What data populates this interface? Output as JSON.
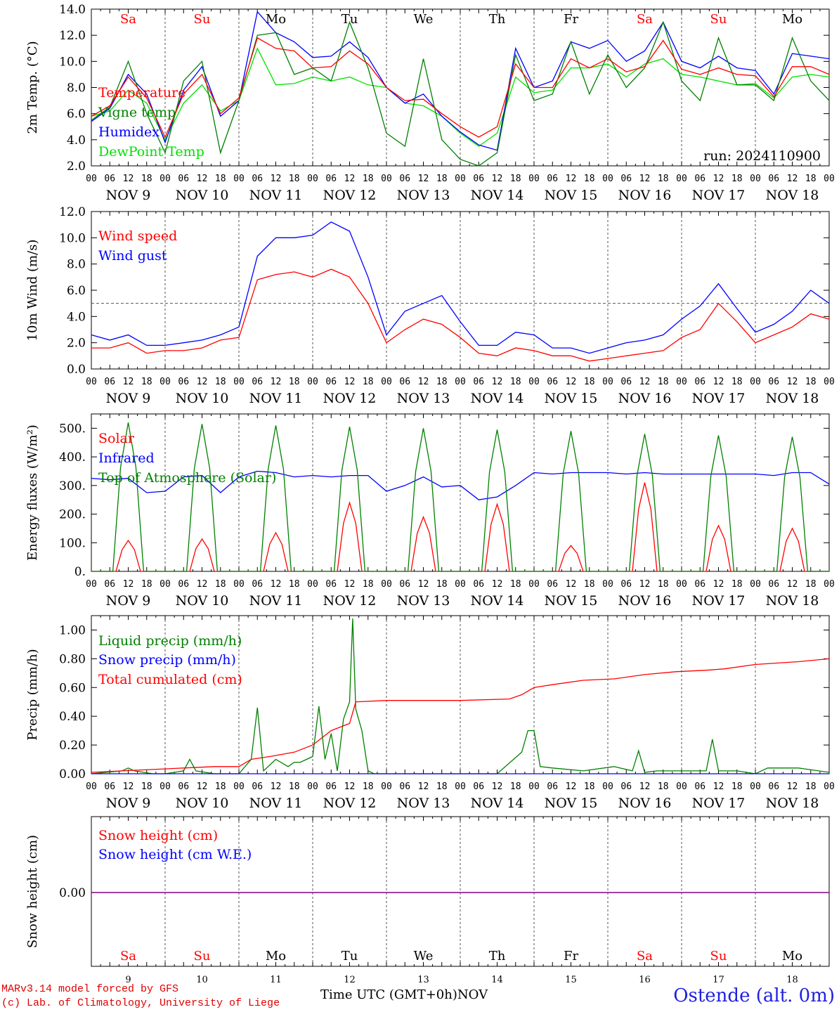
{
  "run_label": "run: 2024110900",
  "footer": {
    "model_line": "MARv3.14 model forced by GFS",
    "copyright_line": "(c) Lab. of Climatology, University of Liege",
    "time_axis_label": "Time UTC (GMT+0h)",
    "month_label": "NOV",
    "station": "Ostende (alt. 0m)"
  },
  "colors": {
    "red": "#ff0000",
    "green": "#008000",
    "blue": "#0000ff",
    "lightgreen": "#00e000",
    "purple": "#800080"
  },
  "days": [
    "9",
    "10",
    "11",
    "12",
    "13",
    "14",
    "15",
    "16",
    "17",
    "18"
  ],
  "date_labels": [
    "NOV  9",
    "NOV 10",
    "NOV 11",
    "NOV 12",
    "NOV 13",
    "NOV 14",
    "NOV 15",
    "NOV 16",
    "NOV 17",
    "NOV 18"
  ],
  "weekdays": [
    {
      "label": "Sa",
      "weekend": true
    },
    {
      "label": "Su",
      "weekend": true
    },
    {
      "label": "Mo",
      "weekend": false
    },
    {
      "label": "Tu",
      "weekend": false
    },
    {
      "label": "We",
      "weekend": false
    },
    {
      "label": "Th",
      "weekend": false
    },
    {
      "label": "Fr",
      "weekend": false
    },
    {
      "label": "Sa",
      "weekend": true
    },
    {
      "label": "Su",
      "weekend": true
    },
    {
      "label": "Mo",
      "weekend": false
    }
  ],
  "hour_ticks": [
    "00",
    "06",
    "12",
    "18"
  ],
  "chart_data": [
    {
      "type": "line",
      "ylabel": "2m Temp. (°C)",
      "ylim": [
        2,
        14
      ],
      "yticks": [
        "2.0",
        "4.0",
        "6.0",
        "8.0",
        "10.0",
        "12.0",
        "14.0"
      ],
      "x_unit": "hours since 2024-11-09 00 UTC",
      "series": [
        {
          "name": "Temperature",
          "color": "red",
          "x": [
            0,
            6,
            12,
            18,
            24,
            30,
            36,
            42,
            48,
            54,
            60,
            66,
            72,
            78,
            84,
            90,
            96,
            102,
            108,
            114,
            120,
            126,
            132,
            138,
            144,
            150,
            156,
            162,
            168,
            174,
            180,
            186,
            192,
            198,
            204,
            210,
            216,
            222,
            228,
            234,
            240
          ],
          "y": [
            5.8,
            6.6,
            8.8,
            7.2,
            4.2,
            7.5,
            9.0,
            6.0,
            7.2,
            11.8,
            11.0,
            10.8,
            9.5,
            9.6,
            10.8,
            9.8,
            8.0,
            7.0,
            7.1,
            6.0,
            5.0,
            4.2,
            5.0,
            9.8,
            8.0,
            8.0,
            10.2,
            9.5,
            10.2,
            9.2,
            9.6,
            11.6,
            9.4,
            9.0,
            9.5,
            9.0,
            8.9,
            7.3,
            9.6,
            9.6,
            9.0
          ]
        },
        {
          "name": "Vigne temp",
          "color": "green",
          "x": [
            0,
            6,
            12,
            18,
            24,
            30,
            36,
            42,
            48,
            54,
            60,
            66,
            72,
            78,
            84,
            90,
            96,
            102,
            108,
            114,
            120,
            126,
            132,
            138,
            144,
            150,
            156,
            162,
            168,
            174,
            180,
            186,
            192,
            198,
            204,
            210,
            216,
            222,
            228,
            234,
            240
          ],
          "y": [
            5.5,
            6.5,
            10.0,
            6.0,
            3.0,
            8.5,
            10.0,
            3.0,
            7.0,
            12.0,
            12.2,
            9.0,
            9.5,
            8.5,
            13.0,
            9.5,
            4.5,
            3.5,
            10.2,
            4.0,
            2.5,
            1.8,
            3.0,
            10.5,
            7.0,
            7.5,
            11.5,
            7.5,
            10.5,
            8.0,
            9.5,
            13.0,
            8.5,
            7.0,
            11.8,
            8.2,
            8.2,
            7.0,
            11.8,
            8.5,
            7.0
          ]
        },
        {
          "name": "Humidex",
          "color": "blue",
          "x": [
            0,
            6,
            12,
            18,
            24,
            30,
            36,
            42,
            48,
            54,
            60,
            66,
            72,
            78,
            84,
            90,
            96,
            102,
            108,
            114,
            120,
            126,
            132,
            138,
            144,
            150,
            156,
            162,
            168,
            174,
            180,
            186,
            192,
            198,
            204,
            210,
            216,
            222,
            228,
            234,
            240
          ],
          "y": [
            5.4,
            6.4,
            9.0,
            7.5,
            3.8,
            7.8,
            9.6,
            5.8,
            7.0,
            13.8,
            12.2,
            11.5,
            10.3,
            10.4,
            11.5,
            10.3,
            8.0,
            6.8,
            7.5,
            5.8,
            4.6,
            3.6,
            3.2,
            11.0,
            8.0,
            8.5,
            11.5,
            11.0,
            11.6,
            10.0,
            10.8,
            13.0,
            10.0,
            9.5,
            10.4,
            9.5,
            9.3,
            7.5,
            10.6,
            10.4,
            10.2
          ]
        },
        {
          "name": "DewPoint Temp",
          "color": "lightgreen",
          "x": [
            0,
            6,
            12,
            18,
            24,
            30,
            36,
            42,
            48,
            54,
            60,
            66,
            72,
            78,
            84,
            90,
            96,
            102,
            108,
            114,
            120,
            126,
            132,
            138,
            144,
            150,
            156,
            162,
            168,
            174,
            180,
            186,
            192,
            198,
            204,
            210,
            216,
            222,
            228,
            234,
            240
          ],
          "y": [
            5.8,
            6.2,
            7.8,
            6.8,
            4.0,
            6.8,
            8.2,
            6.2,
            7.0,
            11.0,
            8.2,
            8.3,
            8.8,
            8.5,
            8.8,
            8.2,
            8.0,
            6.8,
            6.6,
            5.8,
            4.5,
            3.5,
            4.5,
            8.8,
            7.6,
            7.8,
            9.5,
            9.5,
            9.8,
            8.8,
            9.8,
            10.2,
            9.0,
            8.8,
            8.5,
            8.2,
            8.3,
            7.2,
            8.8,
            9.0,
            8.8
          ]
        }
      ]
    },
    {
      "type": "line",
      "ylabel": "10m Wind (m/s)",
      "ylim": [
        0,
        12
      ],
      "yticks": [
        "0.0",
        "2.0",
        "4.0",
        "6.0",
        "8.0",
        "10.0",
        "12.0"
      ],
      "reference_line": 5,
      "x_unit": "hours since 2024-11-09 00 UTC",
      "series": [
        {
          "name": "Wind speed",
          "color": "red",
          "x": [
            0,
            6,
            12,
            18,
            24,
            30,
            36,
            42,
            48,
            54,
            60,
            66,
            72,
            78,
            84,
            90,
            96,
            102,
            108,
            114,
            120,
            126,
            132,
            138,
            144,
            150,
            156,
            162,
            168,
            174,
            180,
            186,
            192,
            198,
            204,
            210,
            216,
            222,
            228,
            234,
            240
          ],
          "y": [
            1.6,
            1.6,
            2.0,
            1.2,
            1.4,
            1.4,
            1.6,
            2.2,
            2.4,
            6.8,
            7.2,
            7.4,
            7.0,
            7.6,
            7.0,
            5.0,
            2.0,
            3.0,
            3.8,
            3.4,
            2.4,
            1.2,
            1.0,
            1.6,
            1.4,
            1.0,
            1.0,
            0.6,
            0.8,
            1.0,
            1.2,
            1.4,
            2.4,
            3.0,
            5.0,
            3.6,
            2.0,
            2.6,
            3.2,
            4.2,
            3.8
          ]
        },
        {
          "name": "Wind gust",
          "color": "blue",
          "x": [
            0,
            6,
            12,
            18,
            24,
            30,
            36,
            42,
            48,
            54,
            60,
            66,
            72,
            78,
            84,
            90,
            96,
            102,
            108,
            114,
            120,
            126,
            132,
            138,
            144,
            150,
            156,
            162,
            168,
            174,
            180,
            186,
            192,
            198,
            204,
            210,
            216,
            222,
            228,
            234,
            240
          ],
          "y": [
            2.6,
            2.2,
            2.6,
            1.8,
            1.8,
            2.0,
            2.2,
            2.6,
            3.2,
            8.6,
            10.0,
            10.0,
            10.2,
            11.2,
            10.5,
            7.0,
            2.6,
            4.4,
            5.0,
            5.6,
            3.6,
            1.8,
            1.8,
            2.8,
            2.6,
            1.6,
            1.6,
            1.2,
            1.6,
            2.0,
            2.2,
            2.6,
            3.8,
            4.8,
            6.5,
            4.6,
            2.8,
            3.4,
            4.4,
            6.0,
            5.0
          ]
        }
      ]
    },
    {
      "type": "line",
      "ylabel": "Energy fluxes (W/m²)",
      "ylim": [
        0,
        550
      ],
      "yticks": [
        "0.",
        "100.",
        "200.",
        "300.",
        "400.",
        "500."
      ],
      "x_unit": "hours since 2024-11-09 00 UTC",
      "series": [
        {
          "name": "Solar",
          "color": "red",
          "peaks": [
            [
              12,
              108
            ],
            [
              36,
              113
            ],
            [
              60,
              135
            ],
            [
              84,
              240
            ],
            [
              108,
              190
            ],
            [
              132,
              235
            ],
            [
              156,
              90
            ],
            [
              180,
              310
            ],
            [
              204,
              160
            ],
            [
              228,
              150
            ]
          ]
        },
        {
          "name": "Infrared",
          "color": "blue",
          "x": [
            0,
            6,
            12,
            18,
            24,
            30,
            36,
            42,
            48,
            54,
            60,
            66,
            72,
            78,
            84,
            90,
            96,
            102,
            108,
            114,
            120,
            126,
            132,
            138,
            144,
            150,
            156,
            162,
            168,
            174,
            180,
            186,
            192,
            198,
            204,
            210,
            216,
            222,
            228,
            234,
            240
          ],
          "y": [
            325,
            320,
            325,
            275,
            280,
            330,
            335,
            275,
            330,
            350,
            345,
            330,
            335,
            330,
            335,
            335,
            280,
            300,
            330,
            295,
            300,
            250,
            260,
            300,
            345,
            340,
            345,
            345,
            345,
            340,
            345,
            340,
            340,
            340,
            340,
            340,
            340,
            335,
            345,
            345,
            305
          ]
        },
        {
          "name": "Top of Atmosphere (Solar)",
          "color": "green",
          "peaks": [
            [
              12,
              520
            ],
            [
              36,
              515
            ],
            [
              60,
              510
            ],
            [
              84,
              505
            ],
            [
              108,
              500
            ],
            [
              132,
              495
            ],
            [
              156,
              490
            ],
            [
              180,
              480
            ],
            [
              204,
              475
            ],
            [
              228,
              470
            ]
          ]
        }
      ]
    },
    {
      "type": "line",
      "ylabel": "Precip (mm/h)",
      "ylim": [
        0,
        1.1
      ],
      "yticks": [
        "0.00",
        "0.20",
        "0.40",
        "0.60",
        "0.80",
        "1.00"
      ],
      "x_unit": "hours since 2024-11-09 00 UTC",
      "series": [
        {
          "name": "Liquid precip (mm/h)",
          "color": "green",
          "x": [
            0,
            10,
            12,
            14,
            20,
            24,
            30,
            32,
            34,
            40,
            48,
            52,
            54,
            56,
            60,
            64,
            66,
            68,
            70,
            72,
            74,
            76,
            78,
            80,
            82,
            84,
            85,
            86,
            88,
            90,
            92,
            96,
            132,
            140,
            142,
            144,
            146,
            150,
            160,
            170,
            176,
            178,
            180,
            184,
            190,
            200,
            202,
            204,
            210,
            216,
            220,
            230,
            240
          ],
          "y": [
            0,
            0.02,
            0.04,
            0.02,
            0,
            0,
            0.02,
            0.1,
            0.02,
            0,
            0,
            0.1,
            0.46,
            0.02,
            0.1,
            0.05,
            0.08,
            0.08,
            0.1,
            0.12,
            0.47,
            0.1,
            0.28,
            0.02,
            0.38,
            0.5,
            1.08,
            0.45,
            0.3,
            0.02,
            0,
            0,
            0,
            0.15,
            0.3,
            0.3,
            0.05,
            0.04,
            0.02,
            0.05,
            0.02,
            0.16,
            0.01,
            0.02,
            0.02,
            0.02,
            0.24,
            0.02,
            0.02,
            0,
            0.04,
            0.04,
            0.01
          ]
        },
        {
          "name": "Snow precip (mm/h)",
          "color": "blue",
          "x": [
            0,
            240
          ],
          "y": [
            0,
            0
          ]
        },
        {
          "name": "Total cumulated (cm)",
          "color": "red",
          "x": [
            0,
            10,
            20,
            30,
            40,
            48,
            52,
            58,
            66,
            72,
            78,
            84,
            86,
            96,
            120,
            136,
            140,
            144,
            150,
            160,
            170,
            180,
            190,
            200,
            206,
            216,
            230,
            240
          ],
          "y": [
            0.01,
            0.02,
            0.03,
            0.04,
            0.05,
            0.05,
            0.1,
            0.12,
            0.15,
            0.2,
            0.3,
            0.35,
            0.5,
            0.51,
            0.51,
            0.52,
            0.55,
            0.6,
            0.62,
            0.65,
            0.66,
            0.69,
            0.71,
            0.72,
            0.73,
            0.76,
            0.78,
            0.8
          ]
        }
      ]
    },
    {
      "type": "line",
      "ylabel": "Snow height (cm)",
      "yticks": [
        "0.00"
      ],
      "x_unit": "hours since 2024-11-09 00 UTC",
      "series": [
        {
          "name": "Snow height (cm)",
          "color": "red",
          "x": [
            0,
            240
          ],
          "y": [
            0,
            0
          ]
        },
        {
          "name": "Snow height (cm W.E.)",
          "color": "blue",
          "x": [
            0,
            240
          ],
          "y": [
            0,
            0
          ]
        }
      ]
    }
  ]
}
